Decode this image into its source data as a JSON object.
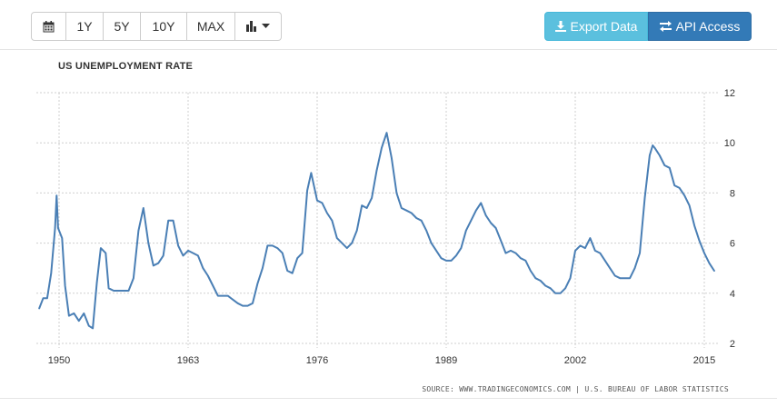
{
  "toolbar": {
    "range_buttons": [
      "1Y",
      "5Y",
      "10Y",
      "MAX"
    ],
    "export_label": "Export Data",
    "api_label": "API Access"
  },
  "chart_data": {
    "type": "line",
    "title": "US UNEMPLOYMENT RATE",
    "xlabel": "",
    "ylabel": "",
    "x_ticks": [
      1950,
      1963,
      1976,
      1989,
      2002,
      2015
    ],
    "y_ticks": [
      2,
      4,
      6,
      8,
      10,
      12
    ],
    "xlim": [
      1948,
      2016
    ],
    "ylim": [
      2,
      12
    ],
    "grid": "vertical dashed at x ticks, horizontal dashed at y ticks",
    "color": "#4a7fb5",
    "series": [
      {
        "x": [
          1948.0,
          1948.4,
          1948.8,
          1949.2,
          1949.6,
          1949.75,
          1949.9,
          1950.3,
          1950.6,
          1951.0,
          1951.5,
          1952.0,
          1952.5,
          1953.0,
          1953.4,
          1953.8,
          1954.2,
          1954.7,
          1955.0,
          1955.5,
          1956.0,
          1956.5,
          1957.0,
          1957.5,
          1958.0,
          1958.5,
          1959.0,
          1959.5,
          1960.0,
          1960.5,
          1961.0,
          1961.5,
          1962.0,
          1962.5,
          1963.0,
          1963.5,
          1964.0,
          1964.5,
          1965.0,
          1965.5,
          1966.0,
          1967.0,
          1968.0,
          1968.5,
          1969.0,
          1969.5,
          1970.0,
          1970.5,
          1971.0,
          1971.5,
          1972.0,
          1972.5,
          1973.0,
          1973.5,
          1974.0,
          1974.5,
          1975.0,
          1975.4,
          1976.0,
          1976.5,
          1977.0,
          1977.5,
          1978.0,
          1978.5,
          1979.0,
          1979.5,
          1980.0,
          1980.5,
          1981.0,
          1981.5,
          1982.0,
          1982.5,
          1983.0,
          1983.5,
          1984.0,
          1984.5,
          1985.0,
          1985.5,
          1986.0,
          1986.5,
          1987.0,
          1987.5,
          1988.0,
          1988.5,
          1989.0,
          1989.5,
          1990.0,
          1990.5,
          1991.0,
          1991.5,
          1992.0,
          1992.5,
          1993.0,
          1993.5,
          1994.0,
          1994.5,
          1995.0,
          1995.5,
          1996.0,
          1996.5,
          1997.0,
          1997.5,
          1998.0,
          1998.5,
          1999.0,
          1999.5,
          2000.0,
          2000.5,
          2001.0,
          2001.5,
          2002.0,
          2002.5,
          2003.0,
          2003.5,
          2004.0,
          2004.5,
          2005.0,
          2005.5,
          2006.0,
          2006.5,
          2007.0,
          2007.5,
          2008.0,
          2008.5,
          2009.0,
          2009.5,
          2009.8,
          2010.0,
          2010.5,
          2011.0,
          2011.5,
          2012.0,
          2012.5,
          2013.0,
          2013.5,
          2014.0,
          2014.5,
          2015.0,
          2015.5,
          2016.0
        ],
        "y": [
          3.4,
          3.8,
          3.8,
          4.8,
          6.6,
          7.9,
          6.6,
          6.2,
          4.3,
          3.1,
          3.2,
          2.9,
          3.2,
          2.7,
          2.6,
          4.4,
          5.8,
          5.6,
          4.2,
          4.1,
          4.1,
          4.1,
          4.1,
          4.6,
          6.5,
          7.4,
          6.0,
          5.1,
          5.2,
          5.5,
          6.9,
          6.9,
          5.9,
          5.5,
          5.7,
          5.6,
          5.5,
          5.0,
          4.7,
          4.3,
          3.9,
          3.9,
          3.6,
          3.5,
          3.5,
          3.6,
          4.4,
          5.0,
          5.9,
          5.9,
          5.8,
          5.6,
          4.9,
          4.8,
          5.4,
          5.6,
          8.1,
          8.8,
          7.7,
          7.6,
          7.2,
          6.9,
          6.2,
          6.0,
          5.8,
          6.0,
          6.5,
          7.5,
          7.4,
          7.8,
          8.9,
          9.8,
          10.4,
          9.4,
          8.0,
          7.4,
          7.3,
          7.2,
          7.0,
          6.9,
          6.5,
          6.0,
          5.7,
          5.4,
          5.3,
          5.3,
          5.5,
          5.8,
          6.5,
          6.9,
          7.3,
          7.6,
          7.1,
          6.8,
          6.6,
          6.1,
          5.6,
          5.7,
          5.6,
          5.4,
          5.3,
          4.9,
          4.6,
          4.5,
          4.3,
          4.2,
          4.0,
          4.0,
          4.2,
          4.6,
          5.7,
          5.9,
          5.8,
          6.2,
          5.7,
          5.6,
          5.3,
          5.0,
          4.7,
          4.6,
          4.6,
          4.6,
          5.0,
          5.6,
          7.8,
          9.5,
          9.9,
          9.8,
          9.5,
          9.1,
          9.0,
          8.3,
          8.2,
          7.9,
          7.5,
          6.7,
          6.1,
          5.6,
          5.2,
          4.9
        ]
      }
    ],
    "source": "SOURCE: WWW.TRADINGECONOMICS.COM | U.S. BUREAU OF LABOR STATISTICS"
  }
}
